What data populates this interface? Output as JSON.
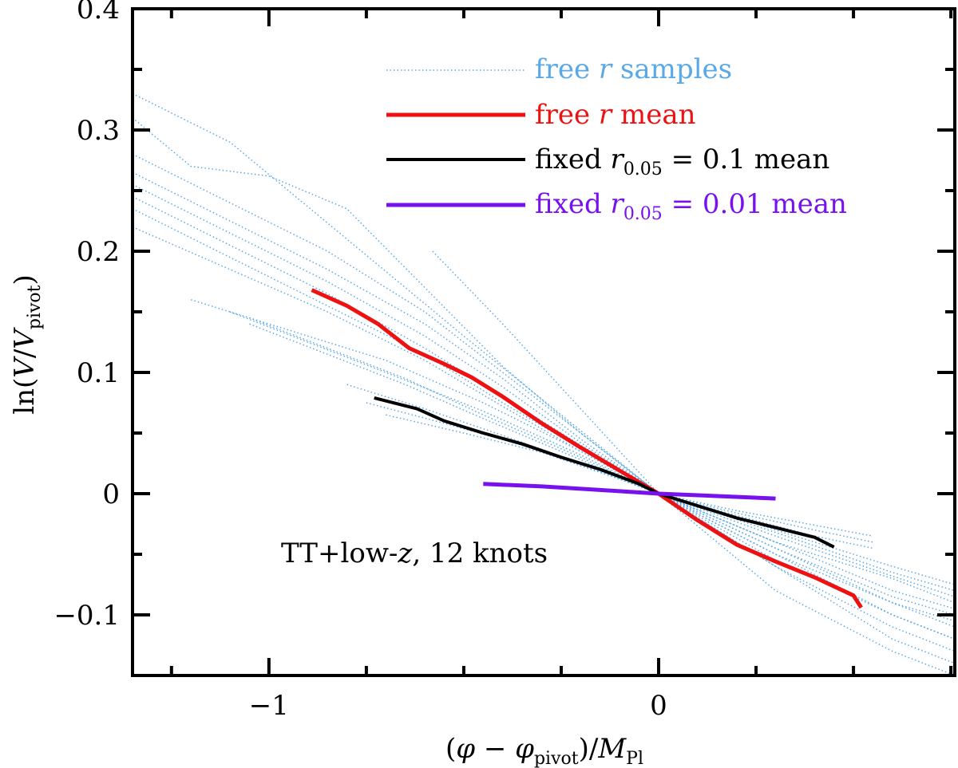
{
  "chart_data": {
    "type": "line",
    "title": "",
    "xlabel": {
      "pre": "(",
      "phi1": "φ",
      "minus": " − ",
      "phi2": "φ",
      "sub1": "pivot",
      "mid": ")/",
      "M": "M",
      "sub2": "Pl"
    },
    "ylabel": {
      "pre": "ln(",
      "V1": "V",
      "slash": "/",
      "V2": "V",
      "sub": "pivot",
      "post": ")"
    },
    "xlim": [
      -1.35,
      0.76
    ],
    "ylim": [
      -0.15,
      0.4
    ],
    "xticks": [
      {
        "value": -1,
        "label": "−1"
      },
      {
        "value": 0,
        "label": "0"
      }
    ],
    "yticks": [
      {
        "value": 0.4,
        "label": "0.4"
      },
      {
        "value": 0.3,
        "label": "0.3"
      },
      {
        "value": 0.2,
        "label": "0.2"
      },
      {
        "value": 0.1,
        "label": "0.1"
      },
      {
        "value": 0,
        "label": "0"
      },
      {
        "value": -0.1,
        "label": "−0.1"
      }
    ],
    "annotation": {
      "pre": "TT+low-",
      "z": "z",
      "post": ", 12 knots"
    },
    "legend": {
      "placement": "top-right",
      "entries": [
        {
          "id": "samples",
          "color": "#5aa8e6",
          "style": "dotted",
          "pre": "free ",
          "var": "r",
          "post": " samples"
        },
        {
          "id": "free-mean",
          "color": "#ee1111",
          "style": "solid",
          "pre": "free ",
          "var": "r",
          "post": " mean"
        },
        {
          "id": "fixed-01",
          "color": "#000000",
          "style": "solid",
          "pre": "fixed ",
          "var": "r",
          "sub": "0.05",
          "post": " = 0.1 mean"
        },
        {
          "id": "fixed-001",
          "color": "#7711ee",
          "style": "solid",
          "pre": "fixed ",
          "var": "r",
          "sub": "0.05",
          "post": " = 0.01 mean"
        }
      ]
    },
    "series": [
      {
        "name": "free r mean",
        "color": "#ee1111",
        "width": 5,
        "x": [
          -0.89,
          -0.8,
          -0.72,
          -0.64,
          -0.55,
          -0.48,
          -0.4,
          -0.3,
          -0.2,
          -0.1,
          0,
          0.1,
          0.2,
          0.3,
          0.4,
          0.5,
          0.52
        ],
        "y": [
          0.168,
          0.155,
          0.14,
          0.12,
          0.107,
          0.096,
          0.08,
          0.058,
          0.038,
          0.019,
          0,
          -0.022,
          -0.042,
          -0.056,
          -0.069,
          -0.084,
          -0.094
        ]
      },
      {
        "name": "fixed r=0.1 mean",
        "color": "#000000",
        "width": 4,
        "x": [
          -0.73,
          -0.62,
          -0.55,
          -0.45,
          -0.35,
          -0.25,
          -0.15,
          -0.05,
          0,
          0.1,
          0.2,
          0.3,
          0.4,
          0.45
        ],
        "y": [
          0.079,
          0.07,
          0.06,
          0.05,
          0.041,
          0.03,
          0.02,
          0.008,
          0,
          -0.01,
          -0.02,
          -0.028,
          -0.036,
          -0.044
        ]
      },
      {
        "name": "fixed r=0.01 mean",
        "color": "#7711ee",
        "width": 5,
        "x": [
          -0.45,
          -0.3,
          -0.15,
          0,
          0.15,
          0.3
        ],
        "y": [
          0.008,
          0.006,
          0.003,
          0,
          -0.002,
          -0.004
        ]
      }
    ],
    "samples": [
      {
        "x": [
          -1.35,
          -1.1,
          -0.8,
          -0.5,
          -0.25,
          0,
          0.3,
          0.6,
          0.76
        ],
        "y": [
          0.33,
          0.29,
          0.21,
          0.13,
          0.065,
          0,
          -0.06,
          -0.12,
          -0.14
        ]
      },
      {
        "x": [
          -1.35,
          -1.2,
          -1.0,
          -0.8,
          -0.6,
          -0.4,
          -0.2,
          0,
          0.3,
          0.6,
          0.76
        ],
        "y": [
          0.31,
          0.27,
          0.262,
          0.235,
          0.17,
          0.105,
          0.05,
          0,
          -0.05,
          -0.1,
          -0.12
        ]
      },
      {
        "x": [
          -1.35,
          -1.1,
          -0.85,
          -0.6,
          -0.4,
          -0.2,
          0,
          0.3,
          0.6,
          0.76
        ],
        "y": [
          0.28,
          0.24,
          0.2,
          0.15,
          0.1,
          0.05,
          0,
          -0.06,
          -0.11,
          -0.13
        ]
      },
      {
        "x": [
          -1.35,
          -1.1,
          -0.85,
          -0.6,
          -0.4,
          -0.2,
          0,
          0.3,
          0.6,
          0.76
        ],
        "y": [
          0.265,
          0.225,
          0.185,
          0.14,
          0.095,
          0.045,
          0,
          -0.055,
          -0.1,
          -0.12
        ]
      },
      {
        "x": [
          -1.35,
          -1.1,
          -0.85,
          -0.6,
          -0.4,
          -0.2,
          0,
          0.3,
          0.6,
          0.76
        ],
        "y": [
          0.255,
          0.215,
          0.175,
          0.13,
          0.088,
          0.042,
          0,
          -0.05,
          -0.09,
          -0.11
        ]
      },
      {
        "x": [
          -1.35,
          -1.1,
          -0.85,
          -0.6,
          -0.4,
          -0.2,
          0,
          0.3,
          0.6,
          0.76
        ],
        "y": [
          0.245,
          0.205,
          0.165,
          0.12,
          0.08,
          0.04,
          0,
          -0.045,
          -0.085,
          -0.1
        ]
      },
      {
        "x": [
          -1.35,
          -1.1,
          -0.85,
          -0.6,
          -0.4,
          -0.2,
          0,
          0.3,
          0.6,
          0.76
        ],
        "y": [
          0.235,
          0.195,
          0.155,
          0.115,
          0.075,
          0.037,
          0,
          -0.04,
          -0.08,
          -0.095
        ]
      },
      {
        "x": [
          -1.35,
          -1.1,
          -0.85,
          -0.6,
          -0.4,
          -0.2,
          0,
          0.3,
          0.6,
          0.76
        ],
        "y": [
          0.22,
          0.185,
          0.15,
          0.11,
          0.072,
          0.035,
          0,
          -0.045,
          -0.09,
          -0.105
        ]
      },
      {
        "x": [
          -0.58,
          -0.4,
          -0.2,
          0,
          0.3,
          0.6,
          0.76
        ],
        "y": [
          0.2,
          0.14,
          0.07,
          0,
          -0.08,
          -0.13,
          -0.15
        ]
      },
      {
        "x": [
          -1.2,
          -0.95,
          -0.7,
          -0.45,
          -0.2,
          0,
          0.3,
          0.6,
          0.76
        ],
        "y": [
          0.16,
          0.135,
          0.11,
          0.075,
          0.035,
          0,
          -0.04,
          -0.07,
          -0.09
        ]
      },
      {
        "x": [
          -1.1,
          -0.9,
          -0.7,
          -0.45,
          -0.2,
          0,
          0.3,
          0.6,
          0.76
        ],
        "y": [
          0.15,
          0.125,
          0.1,
          0.068,
          0.032,
          0,
          -0.035,
          -0.068,
          -0.085
        ]
      },
      {
        "x": [
          -1.05,
          -0.85,
          -0.65,
          -0.45,
          -0.2,
          0,
          0.3,
          0.6,
          0.76
        ],
        "y": [
          0.145,
          0.12,
          0.095,
          0.065,
          0.03,
          0,
          -0.032,
          -0.065,
          -0.08
        ]
      },
      {
        "x": [
          -1.05,
          -0.85,
          -0.65,
          -0.45,
          -0.2,
          0,
          0.3,
          0.6,
          0.76
        ],
        "y": [
          0.14,
          0.115,
          0.09,
          0.062,
          0.028,
          0,
          -0.03,
          -0.06,
          -0.075
        ]
      },
      {
        "x": [
          -0.8,
          -0.6,
          -0.4,
          -0.2,
          0,
          0.2,
          0.4,
          0.55
        ],
        "y": [
          0.09,
          0.07,
          0.048,
          0.025,
          0,
          -0.018,
          -0.035,
          -0.045
        ]
      },
      {
        "x": [
          -0.75,
          -0.55,
          -0.35,
          -0.15,
          0,
          0.2,
          0.4,
          0.55
        ],
        "y": [
          0.075,
          0.058,
          0.04,
          0.018,
          0,
          -0.016,
          -0.03,
          -0.04
        ]
      },
      {
        "x": [
          -0.7,
          -0.5,
          -0.3,
          -0.1,
          0,
          0.2,
          0.4,
          0.55
        ],
        "y": [
          0.065,
          0.05,
          0.034,
          0.012,
          0,
          -0.014,
          -0.026,
          -0.035
        ]
      }
    ]
  }
}
